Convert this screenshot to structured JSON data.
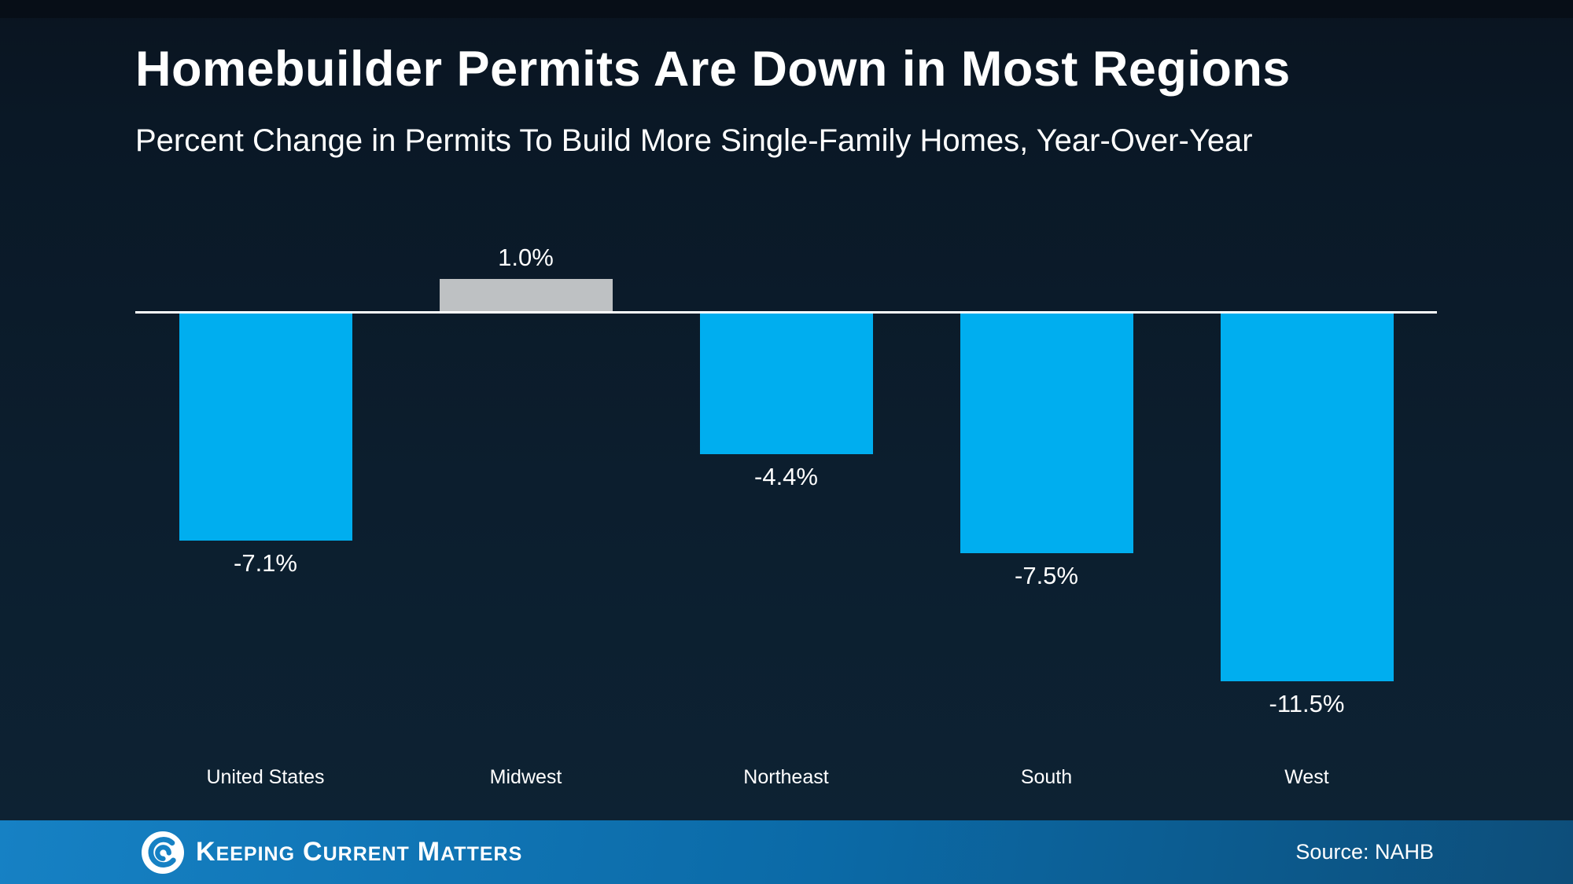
{
  "header": {
    "title": "Homebuilder Permits Are Down in Most Regions",
    "subtitle": "Percent Change in Permits To Build More Single-Family Homes, Year-Over-Year"
  },
  "chart_data": {
    "type": "bar",
    "title": "Homebuilder Permits Are Down in Most Regions",
    "subtitle": "Percent Change in Permits To Build More Single-Family Homes, Year-Over-Year",
    "categories": [
      "United States",
      "Midwest",
      "Northeast",
      "South",
      "West"
    ],
    "values": [
      -7.1,
      1.0,
      -4.4,
      -7.5,
      -11.5
    ],
    "value_labels": [
      "-7.1%",
      "1.0%",
      "-4.4%",
      "-7.5%",
      "-11.5%"
    ],
    "bar_colors": [
      "#00AEEF",
      "#BEC1C3",
      "#00AEEF",
      "#00AEEF",
      "#00AEEF"
    ],
    "baseline": 0,
    "ylim": [
      -12.5,
      2.5
    ],
    "grid": false,
    "legend": "none",
    "xlabel": "",
    "ylabel": ""
  },
  "footer": {
    "brand_words": [
      {
        "lead": "K",
        "rest": "EEPING"
      },
      {
        "lead": "C",
        "rest": "URRENT"
      },
      {
        "lead": "M",
        "rest": "ATTERS"
      }
    ],
    "source": "Source: NAHB"
  },
  "colors": {
    "bar_blue": "#00AEEF",
    "bar_gray": "#BEC1C3",
    "background_top": "#0a1420",
    "background_bottom": "#0d2233",
    "footer_left": "#1681c4",
    "footer_right": "#0d4e7a",
    "baseline": "#FFFFFF",
    "text": "#FFFFFF"
  }
}
